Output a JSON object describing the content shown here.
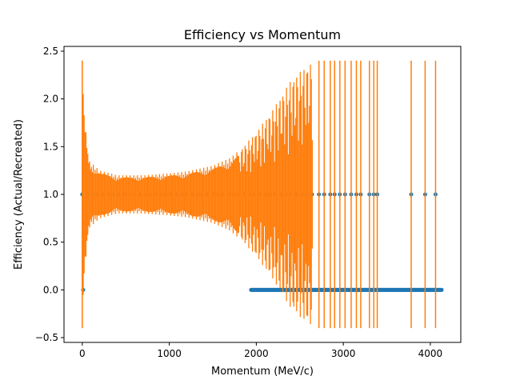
{
  "chart_data": {
    "type": "scatter",
    "title": "Efficiency vs Momentum",
    "xlabel": "Momentum (MeV/c)",
    "ylabel": "Efficiency (Actual/Recreated)",
    "xlim": [
      -210,
      4350
    ],
    "ylim": [
      -0.55,
      2.55
    ],
    "x_ticks": [
      0,
      1000,
      2000,
      3000,
      4000
    ],
    "x_tick_labels": [
      "0",
      "1000",
      "2000",
      "3000",
      "4000"
    ],
    "y_ticks": [
      -0.5,
      0.0,
      0.5,
      1.0,
      1.5,
      2.0,
      2.5
    ],
    "y_tick_labels": [
      "−0.5",
      "0.0",
      "0.5",
      "1.0",
      "1.5",
      "2.0",
      "2.5"
    ],
    "grid": false,
    "legend": "none",
    "colors": {
      "points": "#1f77b4",
      "errorbars": "#ff7f0e"
    },
    "efficiency_values": [
      0,
      1
    ],
    "error_half_width_at_momentum": {
      "x": [
        0,
        30,
        80,
        200,
        400,
        700,
        1000,
        1200,
        1500,
        1700,
        1850,
        2000,
        2200,
        2400,
        2650
      ],
      "err": [
        1.4,
        0.75,
        0.35,
        0.25,
        0.2,
        0.2,
        0.22,
        0.24,
        0.3,
        0.38,
        0.5,
        0.65,
        0.9,
        1.2,
        1.4
      ]
    },
    "dense_band": {
      "x_start": 0,
      "x_end": 2650,
      "efficiency": 1.0
    },
    "sparse_points_eff1": [
      {
        "x": 2720,
        "err": 1.4
      },
      {
        "x": 2780,
        "err": 1.4
      },
      {
        "x": 2850,
        "err": 1.4
      },
      {
        "x": 2900,
        "err": 1.4
      },
      {
        "x": 2960,
        "err": 1.4
      },
      {
        "x": 3020,
        "err": 1.4
      },
      {
        "x": 3090,
        "err": 1.4
      },
      {
        "x": 3150,
        "err": 1.4
      },
      {
        "x": 3200,
        "err": 1.4
      },
      {
        "x": 3300,
        "err": 1.4
      },
      {
        "x": 3350,
        "err": 1.4
      },
      {
        "x": 3390,
        "err": 1.4
      },
      {
        "x": 3780,
        "err": 1.4
      },
      {
        "x": 3940,
        "err": 1.4
      },
      {
        "x": 4060,
        "err": 1.4
      }
    ],
    "zero_points": {
      "x_start": 1940,
      "x_end": 4130,
      "efficiency": 0,
      "isolated_x": [
        10
      ]
    }
  }
}
